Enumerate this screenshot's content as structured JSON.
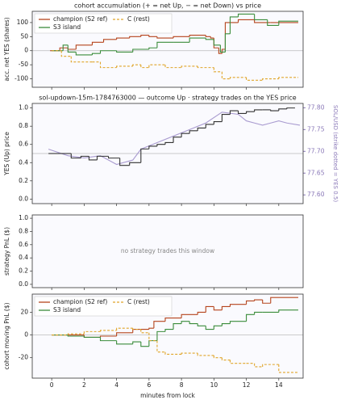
{
  "chart_data": [
    {
      "type": "line",
      "title": "cohort accumulation (+ = net Up, − = net Down) vs price",
      "ylabel": "acc. net YES (shares)",
      "xlim": [
        -1.2,
        15.5
      ],
      "xticks": [
        0,
        2,
        4,
        6,
        8,
        10,
        12,
        14
      ],
      "ylim": [
        -130,
        140
      ],
      "yticks": [
        -100,
        -50,
        0,
        50,
        100
      ],
      "hline": 0,
      "legend": "upper left",
      "series": [
        {
          "name": "champion (S2 ref)",
          "color": "#b5441c",
          "step": true,
          "x": [
            -0.1,
            0.5,
            1.0,
            1.5,
            2.5,
            3.2,
            4.0,
            4.8,
            5.5,
            6.0,
            6.5,
            7.5,
            8.5,
            9.5,
            9.8,
            10.0,
            10.3,
            10.5,
            10.7,
            11.5,
            12.5,
            13.5,
            15.2
          ],
          "values": [
            0,
            10,
            5,
            20,
            30,
            40,
            45,
            50,
            55,
            50,
            45,
            50,
            55,
            50,
            45,
            10,
            -10,
            5,
            100,
            110,
            100,
            100,
            100
          ]
        },
        {
          "name": "S3 island",
          "color": "#3b8c3b",
          "step": true,
          "x": [
            0,
            0.7,
            1.0,
            1.5,
            2.5,
            3.0,
            4.0,
            5.0,
            6.0,
            6.5,
            7.5,
            8.5,
            9.5,
            10.0,
            10.4,
            10.7,
            11.0,
            11.5,
            12.5,
            13.3,
            14.0,
            15.2
          ],
          "values": [
            0,
            20,
            -5,
            -15,
            -10,
            0,
            -5,
            5,
            10,
            30,
            30,
            45,
            40,
            20,
            -5,
            60,
            120,
            130,
            110,
            90,
            105,
            105
          ]
        },
        {
          "name": "C (rest)",
          "color": "#e0a52a",
          "step": true,
          "dash": true,
          "x": [
            0,
            0.6,
            1.2,
            2.5,
            3.0,
            4.0,
            5.0,
            5.5,
            6.0,
            7.0,
            8.0,
            9.0,
            10.0,
            10.5,
            11.0,
            12.0,
            13.0,
            14.0,
            15.2
          ],
          "values": [
            0,
            -20,
            -40,
            -40,
            -60,
            -55,
            -50,
            -60,
            -50,
            -60,
            -55,
            -60,
            -75,
            -100,
            -95,
            -105,
            -100,
            -95,
            -95
          ]
        }
      ]
    },
    {
      "type": "line",
      "title": "sol-updown-15m-1784763000 — outcome Up · strategy trades on the YES price",
      "ylabel": "YES (Up) price",
      "y2label": "SOL/USD (strike dotted = YES 0.5)",
      "xlim": [
        -1.2,
        15.5
      ],
      "xticks": [
        0,
        2,
        4,
        6,
        8,
        10,
        12,
        14
      ],
      "ylim": [
        -0.05,
        1.05
      ],
      "yticks": [
        {
          "value": 0,
          "label": "0.0"
        },
        {
          "value": 0.2,
          "label": "0.2"
        },
        {
          "value": 0.4,
          "label": "0.4"
        },
        {
          "value": 0.6,
          "label": "0.6"
        },
        {
          "value": 0.8,
          "label": "0.8"
        },
        {
          "value": 1,
          "label": "1.0"
        }
      ],
      "y2lim": [
        77.58,
        77.81
      ],
      "y2ticks": [
        {
          "value": 77.6,
          "label": "77.60"
        },
        {
          "value": 77.65,
          "label": "77.65"
        },
        {
          "value": 77.7,
          "label": "77.70"
        },
        {
          "value": 77.75,
          "label": "77.75"
        },
        {
          "value": 77.8,
          "label": "77.80"
        }
      ],
      "y2color": "#8a78b8",
      "hline": 0.5,
      "series": [
        {
          "color": "#a99bd0",
          "axis": "y2",
          "x": [
            -0.2,
            1,
            2,
            3,
            4,
            5,
            5.5,
            6.5,
            7.5,
            8.5,
            9.5,
            10.5,
            11.5,
            12,
            12.5,
            13,
            13.5,
            14,
            14.5,
            15.3
          ],
          "values": [
            77.705,
            77.69,
            77.685,
            77.69,
            77.67,
            77.68,
            77.705,
            77.72,
            77.735,
            77.75,
            77.765,
            77.79,
            77.785,
            77.77,
            77.765,
            77.76,
            77.765,
            77.77,
            77.765,
            77.76
          ]
        },
        {
          "color": "#333333",
          "step": true,
          "x": [
            -0.2,
            0.5,
            1.2,
            1.8,
            2.3,
            2.8,
            3.5,
            4.2,
            4.8,
            5.5,
            6,
            6.5,
            7,
            7.5,
            8,
            8.5,
            9,
            9.5,
            10,
            10.5,
            11,
            11.5,
            12,
            12.5,
            13,
            13.5,
            14,
            14.5,
            15
          ],
          "values": [
            0.5,
            0.5,
            0.45,
            0.47,
            0.43,
            0.47,
            0.45,
            0.37,
            0.4,
            0.55,
            0.58,
            0.6,
            0.62,
            0.68,
            0.72,
            0.75,
            0.78,
            0.82,
            0.85,
            0.93,
            0.97,
            0.94,
            0.96,
            0.98,
            0.98,
            0.97,
            0.99,
            1.0,
            1.0
          ]
        }
      ]
    },
    {
      "type": "line",
      "ylabel": "strategy PnL ($)",
      "annotation": "no strategy trades this window",
      "xlim": [
        -1.2,
        15.5
      ],
      "xticks": [
        0,
        2,
        4,
        6,
        8,
        10,
        12,
        14
      ],
      "ylim": [
        -0.05,
        1.05
      ],
      "yticks": [
        {
          "value": 0,
          "label": "0.0"
        },
        {
          "value": 0.2,
          "label": "0.2"
        },
        {
          "value": 0.4,
          "label": "0.4"
        },
        {
          "value": 0.6,
          "label": "0.6"
        },
        {
          "value": 0.8,
          "label": "0.8"
        },
        {
          "value": 1,
          "label": "1.0"
        }
      ],
      "series": []
    },
    {
      "type": "line",
      "ylabel": "cohort moving PnL ($)",
      "xlabel": "minutes from lock",
      "xlim": [
        -1.2,
        15.5
      ],
      "xticks": [
        0,
        2,
        4,
        6,
        8,
        10,
        12,
        14
      ],
      "ylim": [
        -38,
        36
      ],
      "yticks": [
        -20,
        0,
        20
      ],
      "hline": 0,
      "legend": "upper left",
      "series": [
        {
          "name": "champion (S2 ref)",
          "color": "#b5441c",
          "step": true,
          "x": [
            0,
            1,
            2,
            3,
            4,
            5,
            6,
            6.3,
            7,
            8,
            9,
            9.5,
            10,
            10.5,
            11,
            12,
            12.5,
            13,
            13.5,
            15.2
          ],
          "values": [
            0,
            0,
            -2,
            -1,
            2,
            5,
            6,
            12,
            15,
            18,
            20,
            25,
            22,
            25,
            27,
            30,
            31,
            28,
            33,
            33
          ]
        },
        {
          "name": "S3 island",
          "color": "#3b8c3b",
          "step": true,
          "x": [
            0,
            1,
            2,
            3,
            4,
            5,
            5.5,
            6,
            6.5,
            7,
            7.5,
            8,
            8.5,
            9,
            9.5,
            10,
            10.5,
            11,
            12,
            12.5,
            13,
            14,
            15.2
          ],
          "values": [
            0,
            -1,
            -2,
            -5,
            -8,
            -6,
            -10,
            -5,
            3,
            5,
            10,
            12,
            10,
            8,
            5,
            8,
            10,
            12,
            18,
            20,
            20,
            22,
            22
          ]
        },
        {
          "name": "C (rest)",
          "color": "#e0a52a",
          "step": true,
          "dash": true,
          "x": [
            0,
            1,
            2,
            3,
            4,
            5,
            5.5,
            6,
            6.5,
            7,
            8,
            9,
            10,
            10.5,
            11,
            12,
            12.5,
            13,
            14,
            15.2
          ],
          "values": [
            0,
            1,
            3,
            4,
            6,
            5,
            2,
            -5,
            -15,
            -17,
            -16,
            -18,
            -20,
            -22,
            -25,
            -25,
            -28,
            -26,
            -33,
            -33
          ]
        }
      ]
    }
  ]
}
